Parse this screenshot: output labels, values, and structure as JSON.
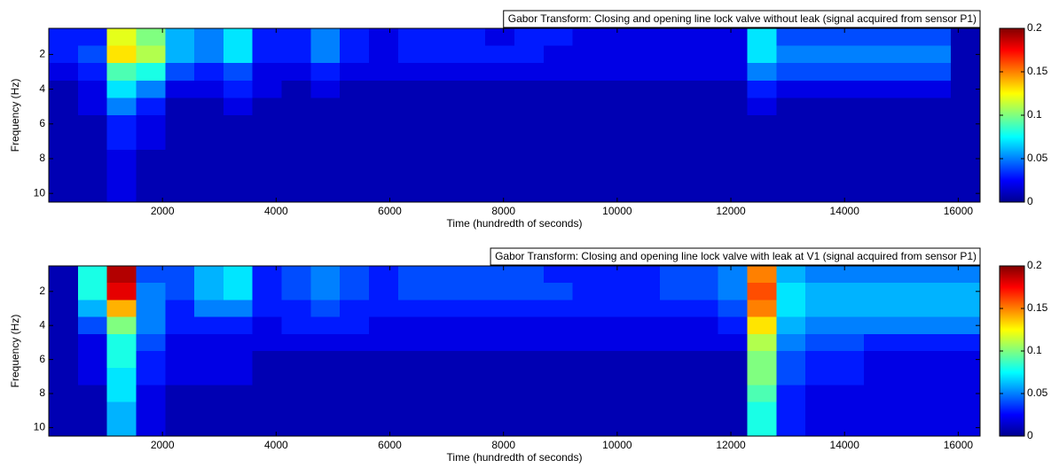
{
  "chart_data": [
    {
      "type": "heatmap",
      "title": "Gabor Transform: Closing and opening line lock valve without leak (signal acquired from sensor P1)",
      "xlabel": "Time (hundredth of seconds)",
      "ylabel": "Frequency (Hz)",
      "colormap": "jet",
      "xlim": [
        0,
        16384
      ],
      "xticks": [
        2000,
        4000,
        6000,
        8000,
        10000,
        12000,
        14000,
        16000
      ],
      "ylim": [
        0.5,
        10.5
      ],
      "yticks": [
        2,
        4,
        6,
        8,
        10
      ],
      "clim": [
        0,
        0.2
      ],
      "cticks": [
        0,
        0.05,
        0.1,
        0.15,
        0.2
      ],
      "xbins": [
        0,
        512,
        1024,
        1536,
        2048,
        2560,
        3072,
        3584,
        4096,
        4608,
        5120,
        5632,
        6144,
        6656,
        7168,
        7680,
        8192,
        8704,
        9216,
        9728,
        10240,
        10752,
        11264,
        11776,
        12288,
        12800,
        13312,
        13824,
        14336,
        14848,
        15360,
        15872,
        16384
      ],
      "y": [
        1,
        2,
        3,
        4,
        5,
        6,
        7,
        8,
        9,
        10
      ],
      "z": [
        [
          0.03,
          0.03,
          0.12,
          0.1,
          0.06,
          0.05,
          0.07,
          0.03,
          0.03,
          0.05,
          0.03,
          0.02,
          0.03,
          0.03,
          0.03,
          0.02,
          0.03,
          0.03,
          0.02,
          0.02,
          0.02,
          0.02,
          0.02,
          0.02,
          0.07,
          0.04,
          0.04,
          0.04,
          0.04,
          0.04,
          0.04,
          0.01
        ],
        [
          0.03,
          0.04,
          0.13,
          0.11,
          0.06,
          0.05,
          0.07,
          0.03,
          0.03,
          0.05,
          0.03,
          0.02,
          0.03,
          0.03,
          0.03,
          0.03,
          0.03,
          0.02,
          0.02,
          0.02,
          0.02,
          0.02,
          0.02,
          0.02,
          0.07,
          0.05,
          0.05,
          0.05,
          0.05,
          0.05,
          0.05,
          0.01
        ],
        [
          0.02,
          0.03,
          0.09,
          0.08,
          0.04,
          0.03,
          0.04,
          0.02,
          0.02,
          0.03,
          0.02,
          0.02,
          0.02,
          0.02,
          0.02,
          0.02,
          0.02,
          0.02,
          0.02,
          0.02,
          0.02,
          0.02,
          0.02,
          0.02,
          0.05,
          0.04,
          0.04,
          0.04,
          0.04,
          0.04,
          0.04,
          0.01
        ],
        [
          0.01,
          0.02,
          0.07,
          0.05,
          0.02,
          0.02,
          0.03,
          0.02,
          0.01,
          0.02,
          0.01,
          0.01,
          0.01,
          0.01,
          0.01,
          0.01,
          0.01,
          0.01,
          0.01,
          0.01,
          0.01,
          0.01,
          0.01,
          0.01,
          0.03,
          0.02,
          0.02,
          0.02,
          0.02,
          0.02,
          0.02,
          0.01
        ],
        [
          0.01,
          0.02,
          0.05,
          0.03,
          0.01,
          0.01,
          0.02,
          0.01,
          0.01,
          0.01,
          0.01,
          0.01,
          0.01,
          0.01,
          0.01,
          0.01,
          0.01,
          0.01,
          0.01,
          0.01,
          0.01,
          0.01,
          0.01,
          0.01,
          0.02,
          0.01,
          0.01,
          0.01,
          0.01,
          0.01,
          0.01,
          0.01
        ],
        [
          0.01,
          0.01,
          0.03,
          0.02,
          0.01,
          0.01,
          0.01,
          0.01,
          0.01,
          0.01,
          0.01,
          0.01,
          0.01,
          0.01,
          0.01,
          0.01,
          0.01,
          0.01,
          0.01,
          0.01,
          0.01,
          0.01,
          0.01,
          0.01,
          0.01,
          0.01,
          0.01,
          0.01,
          0.01,
          0.01,
          0.01,
          0.01
        ],
        [
          0.01,
          0.01,
          0.03,
          0.02,
          0.01,
          0.01,
          0.01,
          0.01,
          0.01,
          0.01,
          0.01,
          0.01,
          0.01,
          0.01,
          0.01,
          0.01,
          0.01,
          0.01,
          0.01,
          0.01,
          0.01,
          0.01,
          0.01,
          0.01,
          0.01,
          0.01,
          0.01,
          0.01,
          0.01,
          0.01,
          0.01,
          0.01
        ],
        [
          0.01,
          0.01,
          0.02,
          0.01,
          0.01,
          0.01,
          0.01,
          0.01,
          0.01,
          0.01,
          0.01,
          0.01,
          0.01,
          0.01,
          0.01,
          0.01,
          0.01,
          0.01,
          0.01,
          0.01,
          0.01,
          0.01,
          0.01,
          0.01,
          0.01,
          0.01,
          0.01,
          0.01,
          0.01,
          0.01,
          0.01,
          0.01
        ],
        [
          0.01,
          0.01,
          0.02,
          0.01,
          0.01,
          0.01,
          0.01,
          0.01,
          0.01,
          0.01,
          0.01,
          0.01,
          0.01,
          0.01,
          0.01,
          0.01,
          0.01,
          0.01,
          0.01,
          0.01,
          0.01,
          0.01,
          0.01,
          0.01,
          0.01,
          0.01,
          0.01,
          0.01,
          0.01,
          0.01,
          0.01,
          0.01
        ],
        [
          0.01,
          0.01,
          0.02,
          0.01,
          0.01,
          0.01,
          0.01,
          0.01,
          0.01,
          0.01,
          0.01,
          0.01,
          0.01,
          0.01,
          0.01,
          0.01,
          0.01,
          0.01,
          0.01,
          0.01,
          0.01,
          0.01,
          0.01,
          0.01,
          0.01,
          0.01,
          0.01,
          0.01,
          0.01,
          0.01,
          0.01,
          0.01
        ]
      ]
    },
    {
      "type": "heatmap",
      "title": "Gabor Transform: Closing and opening line lock valve with leak at V1 (signal acquired from sensor P1)",
      "xlabel": "Time (hundredth of seconds)",
      "ylabel": "Frequency (Hz)",
      "colormap": "jet",
      "xlim": [
        0,
        16384
      ],
      "xticks": [
        2000,
        4000,
        6000,
        8000,
        10000,
        12000,
        14000,
        16000
      ],
      "ylim": [
        0.5,
        10.5
      ],
      "yticks": [
        2,
        4,
        6,
        8,
        10
      ],
      "clim": [
        0,
        0.2
      ],
      "cticks": [
        0,
        0.05,
        0.1,
        0.15,
        0.2
      ],
      "xbins": [
        0,
        512,
        1024,
        1536,
        2048,
        2560,
        3072,
        3584,
        4096,
        4608,
        5120,
        5632,
        6144,
        6656,
        7168,
        7680,
        8192,
        8704,
        9216,
        9728,
        10240,
        10752,
        11264,
        11776,
        12288,
        12800,
        13312,
        13824,
        14336,
        14848,
        15360,
        15872,
        16384
      ],
      "y": [
        1,
        2,
        3,
        4,
        5,
        6,
        7,
        8,
        9,
        10
      ],
      "z": [
        [
          0.01,
          0.08,
          0.19,
          0.04,
          0.04,
          0.06,
          0.07,
          0.03,
          0.04,
          0.05,
          0.04,
          0.03,
          0.04,
          0.04,
          0.04,
          0.04,
          0.04,
          0.03,
          0.03,
          0.03,
          0.03,
          0.04,
          0.04,
          0.05,
          0.15,
          0.06,
          0.05,
          0.05,
          0.05,
          0.05,
          0.05,
          0.05
        ],
        [
          0.01,
          0.08,
          0.18,
          0.05,
          0.04,
          0.06,
          0.07,
          0.03,
          0.04,
          0.05,
          0.04,
          0.03,
          0.04,
          0.04,
          0.04,
          0.04,
          0.04,
          0.04,
          0.03,
          0.03,
          0.03,
          0.04,
          0.04,
          0.05,
          0.16,
          0.07,
          0.06,
          0.06,
          0.06,
          0.06,
          0.06,
          0.06
        ],
        [
          0.01,
          0.06,
          0.14,
          0.05,
          0.03,
          0.05,
          0.05,
          0.03,
          0.03,
          0.04,
          0.03,
          0.03,
          0.03,
          0.03,
          0.03,
          0.03,
          0.03,
          0.03,
          0.03,
          0.03,
          0.03,
          0.03,
          0.03,
          0.04,
          0.15,
          0.07,
          0.06,
          0.06,
          0.06,
          0.06,
          0.06,
          0.06
        ],
        [
          0.01,
          0.04,
          0.1,
          0.05,
          0.03,
          0.03,
          0.03,
          0.02,
          0.03,
          0.03,
          0.03,
          0.02,
          0.02,
          0.02,
          0.02,
          0.02,
          0.02,
          0.02,
          0.02,
          0.02,
          0.02,
          0.02,
          0.02,
          0.03,
          0.13,
          0.06,
          0.05,
          0.05,
          0.05,
          0.05,
          0.05,
          0.05
        ],
        [
          0.01,
          0.02,
          0.08,
          0.04,
          0.02,
          0.02,
          0.02,
          0.02,
          0.02,
          0.02,
          0.02,
          0.02,
          0.02,
          0.02,
          0.02,
          0.02,
          0.02,
          0.02,
          0.02,
          0.02,
          0.02,
          0.02,
          0.02,
          0.02,
          0.11,
          0.05,
          0.04,
          0.04,
          0.03,
          0.03,
          0.03,
          0.03
        ],
        [
          0.01,
          0.02,
          0.08,
          0.03,
          0.02,
          0.02,
          0.02,
          0.01,
          0.01,
          0.01,
          0.01,
          0.01,
          0.01,
          0.01,
          0.01,
          0.01,
          0.01,
          0.01,
          0.01,
          0.01,
          0.01,
          0.01,
          0.01,
          0.01,
          0.1,
          0.04,
          0.03,
          0.03,
          0.02,
          0.02,
          0.02,
          0.02
        ],
        [
          0.01,
          0.02,
          0.07,
          0.03,
          0.02,
          0.02,
          0.02,
          0.01,
          0.01,
          0.01,
          0.01,
          0.01,
          0.01,
          0.01,
          0.01,
          0.01,
          0.01,
          0.01,
          0.01,
          0.01,
          0.01,
          0.01,
          0.01,
          0.01,
          0.1,
          0.04,
          0.03,
          0.03,
          0.02,
          0.02,
          0.02,
          0.02
        ],
        [
          0.01,
          0.01,
          0.07,
          0.02,
          0.01,
          0.01,
          0.01,
          0.01,
          0.01,
          0.01,
          0.01,
          0.01,
          0.01,
          0.01,
          0.01,
          0.01,
          0.01,
          0.01,
          0.01,
          0.01,
          0.01,
          0.01,
          0.01,
          0.01,
          0.09,
          0.03,
          0.02,
          0.02,
          0.02,
          0.02,
          0.02,
          0.02
        ],
        [
          0.01,
          0.01,
          0.06,
          0.02,
          0.01,
          0.01,
          0.01,
          0.01,
          0.01,
          0.01,
          0.01,
          0.01,
          0.01,
          0.01,
          0.01,
          0.01,
          0.01,
          0.01,
          0.01,
          0.01,
          0.01,
          0.01,
          0.01,
          0.01,
          0.08,
          0.03,
          0.02,
          0.02,
          0.02,
          0.02,
          0.02,
          0.02
        ],
        [
          0.01,
          0.01,
          0.06,
          0.02,
          0.01,
          0.01,
          0.01,
          0.01,
          0.01,
          0.01,
          0.01,
          0.01,
          0.01,
          0.01,
          0.01,
          0.01,
          0.01,
          0.01,
          0.01,
          0.01,
          0.01,
          0.01,
          0.01,
          0.01,
          0.08,
          0.03,
          0.02,
          0.02,
          0.02,
          0.02,
          0.02,
          0.02
        ]
      ]
    }
  ]
}
